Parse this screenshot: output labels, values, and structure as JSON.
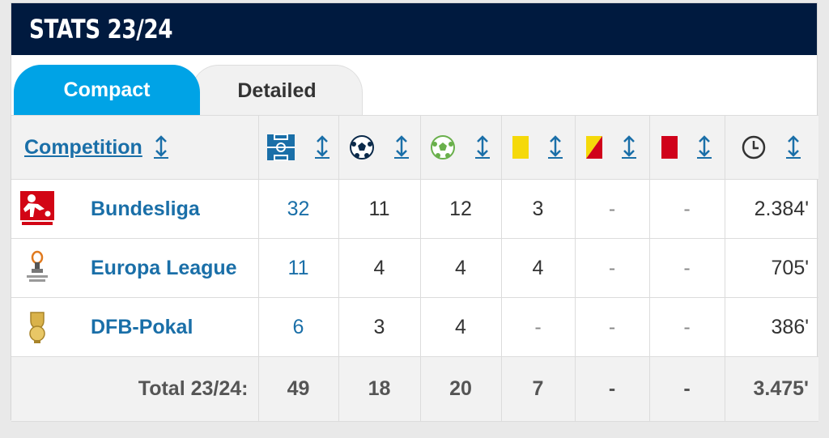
{
  "header": {
    "title": "STATS 23/24"
  },
  "tabs": [
    {
      "label": "Compact",
      "active": true
    },
    {
      "label": "Detailed",
      "active": false
    }
  ],
  "columns": {
    "competition": "Competition",
    "icons": [
      "appearances-pitch-icon",
      "goals-ball-icon",
      "assists-ball-icon",
      "yellow-card-icon",
      "yellow-red-card-icon",
      "red-card-icon",
      "minutes-clock-icon"
    ]
  },
  "colors": {
    "accent": "#00a3e6",
    "header_bg": "#001a3f",
    "link": "#1a6fa8",
    "yellow": "#f5d90a",
    "red": "#d0021b"
  },
  "rows": [
    {
      "competition": "Bundesliga",
      "logo": "bundesliga-logo",
      "apps": "32",
      "goals": "11",
      "assists": "12",
      "yellow": "3",
      "yellow_red": "-",
      "red": "-",
      "minutes": "2.384'"
    },
    {
      "competition": "Europa League",
      "logo": "europa-league-logo",
      "apps": "11",
      "goals": "4",
      "assists": "4",
      "yellow": "4",
      "yellow_red": "-",
      "red": "-",
      "minutes": "705'"
    },
    {
      "competition": "DFB-Pokal",
      "logo": "dfb-pokal-logo",
      "apps": "6",
      "goals": "3",
      "assists": "4",
      "yellow": "-",
      "yellow_red": "-",
      "red": "-",
      "minutes": "386'"
    }
  ],
  "total": {
    "label": "Total 23/24:",
    "apps": "49",
    "goals": "18",
    "assists": "20",
    "yellow": "7",
    "yellow_red": "-",
    "red": "-",
    "minutes": "3.475'"
  }
}
